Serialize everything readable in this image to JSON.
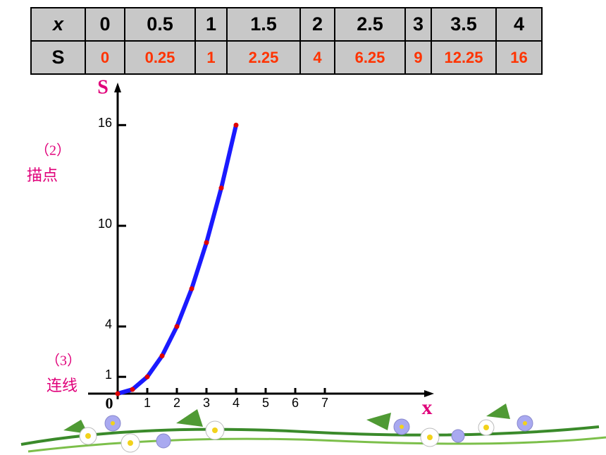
{
  "table": {
    "rows": [
      [
        "x",
        "0",
        "0.5",
        "1",
        "1.5",
        "2",
        "2.5",
        "3",
        "3.5",
        "4"
      ],
      [
        "S",
        "0",
        "0.25",
        "1",
        "2.25",
        "4",
        "6.25",
        "9",
        "12.25",
        "16"
      ]
    ]
  },
  "notes": [
    {
      "step": "（2）",
      "text": "描点"
    },
    {
      "step": "（3）",
      "text": "连线"
    }
  ],
  "chart_data": {
    "type": "line",
    "x": [
      0,
      0.5,
      1,
      1.5,
      2,
      2.5,
      3,
      3.5,
      4
    ],
    "values": [
      0,
      0.25,
      1,
      2.25,
      4,
      6.25,
      9,
      12.25,
      16
    ],
    "color": "#1a1aff",
    "point_color": "#e00000",
    "x_label": "x",
    "y_label": "S",
    "origin_label": "0",
    "xlim": [
      0,
      10.5
    ],
    "ylim": [
      0,
      18.2
    ],
    "xticks": [
      1,
      2,
      3,
      4,
      5,
      6,
      7
    ],
    "yticks": [
      1,
      4,
      10,
      16
    ]
  }
}
